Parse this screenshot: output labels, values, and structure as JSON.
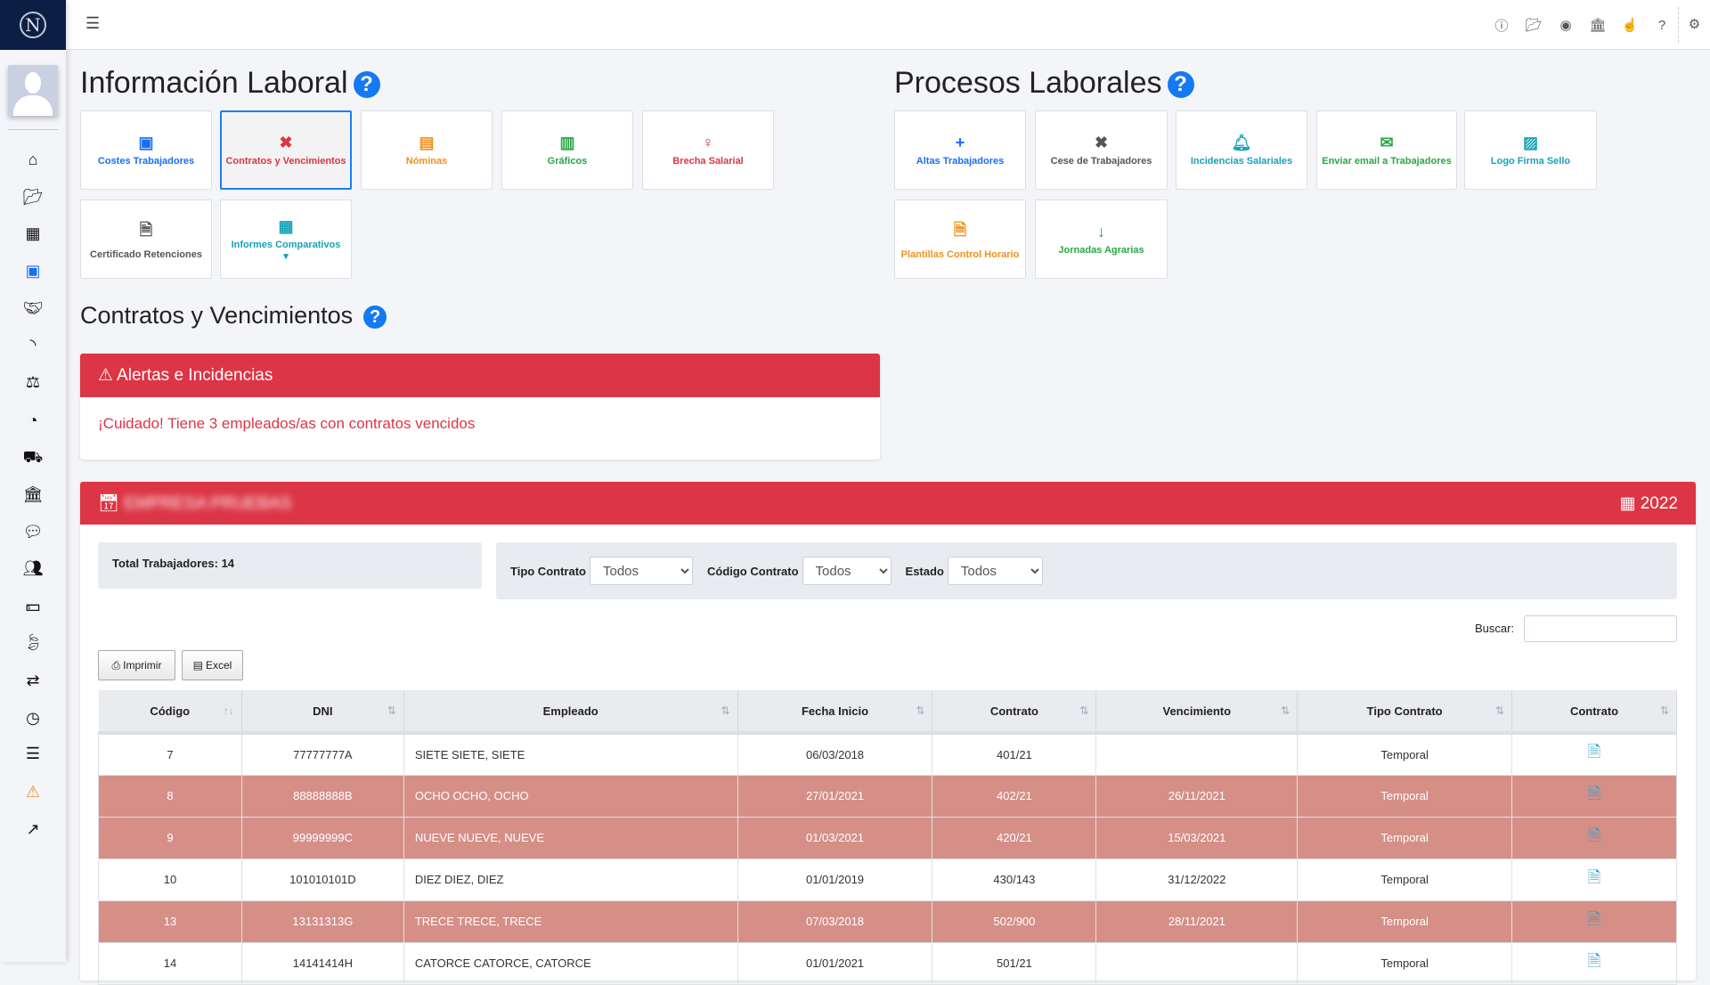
{
  "sidebar": {
    "logo": "N",
    "icons": [
      "home-icon",
      "folder-open-icon",
      "calculator-icon",
      "address-book-icon",
      "handshake-icon",
      "rss-icon",
      "balance-scale-icon",
      "dashboard-icon",
      "truck-icon",
      "bank-icon",
      "comments-icon",
      "users-icon",
      "money-icon",
      "leaf-icon",
      "retweet-icon",
      "clock-icon",
      "server-icon",
      "warning-icon",
      "external-link-icon"
    ]
  },
  "topbar": {
    "icons": [
      "info-icon",
      "folder-icon",
      "user-circle-icon",
      "bank-icon",
      "hand-pointer-icon",
      "question-icon",
      "gear-icon"
    ]
  },
  "info": {
    "title": "Información Laboral",
    "help": "?",
    "tiles": [
      {
        "label": "Costes Trabajadores",
        "color": "#1a6ef5"
      },
      {
        "label": "Contratos y Vencimientos",
        "color": "#dc3545"
      },
      {
        "label": "Nóminas",
        "color": "#f0901a"
      },
      {
        "label": "Gráficos",
        "color": "#28a745"
      },
      {
        "label": "Brecha Salarial",
        "color": "#dc3545"
      },
      {
        "label": "Certificado Retenciones",
        "color": "#555555"
      },
      {
        "label": "Informes Comparativos",
        "color": "#17a2b8"
      }
    ]
  },
  "procesos": {
    "title": "Procesos Laborales",
    "help": "?",
    "tiles": [
      {
        "label": "Altas Trabajadores",
        "color": "#1a6ef5"
      },
      {
        "label": "Cese de Trabajadores",
        "color": "#555555"
      },
      {
        "label": "Incidencias Salariales",
        "color": "#17a2b8"
      },
      {
        "label": "Enviar email a Trabajadores",
        "color": "#28a745"
      },
      {
        "label": "Logo Firma Sello",
        "color": "#17a2b8"
      },
      {
        "label": "Plantillas Control Horario",
        "color": "#f0901a"
      },
      {
        "label": "Jornadas Agrarias",
        "color": "#28a745"
      }
    ]
  },
  "section": {
    "title": "Contratos y Vencimientos",
    "help": "?"
  },
  "alerts": {
    "title": "Alertas e Incidencias",
    "message": "¡Cuidado! Tiene 3 empleados/as con contratos vencidos"
  },
  "company": {
    "name": "EMPRESA PRUEBAS",
    "year": "2022",
    "total": "Total Trabajadores: 14"
  },
  "filters": {
    "tipo_label": "Tipo Contrato",
    "tipo_value": "Todos",
    "codigo_label": "Código Contrato",
    "codigo_value": "Todos",
    "estado_label": "Estado",
    "estado_value": "Todos"
  },
  "search": {
    "label": "Buscar:",
    "value": ""
  },
  "buttons": {
    "print": "Imprimir",
    "excel": "Excel"
  },
  "table": {
    "headers": [
      "Código",
      "DNI",
      "Empleado",
      "Fecha Inicio",
      "Contrato",
      "Vencimiento",
      "Tipo Contrato",
      "Contrato"
    ],
    "rows": [
      {
        "codigo": "7",
        "dni": "77777777A",
        "empleado": "SIETE SIETE, SIETE",
        "inicio": "06/03/2018",
        "contrato": "401/21",
        "venc": "",
        "tipo": "Temporal",
        "expired": false
      },
      {
        "codigo": "8",
        "dni": "88888888B",
        "empleado": "OCHO OCHO, OCHO",
        "inicio": "27/01/2021",
        "contrato": "402/21",
        "venc": "26/11/2021",
        "tipo": "Temporal",
        "expired": true
      },
      {
        "codigo": "9",
        "dni": "99999999C",
        "empleado": "NUEVE NUEVE, NUEVE",
        "inicio": "01/03/2021",
        "contrato": "420/21",
        "venc": "15/03/2021",
        "tipo": "Temporal",
        "expired": true
      },
      {
        "codigo": "10",
        "dni": "101010101D",
        "empleado": "DIEZ DIEZ, DIEZ",
        "inicio": "01/01/2019",
        "contrato": "430/143",
        "venc": "31/12/2022",
        "tipo": "Temporal",
        "expired": false
      },
      {
        "codigo": "13",
        "dni": "13131313G",
        "empleado": "TRECE TRECE, TRECE",
        "inicio": "07/03/2018",
        "contrato": "502/900",
        "venc": "28/11/2021",
        "tipo": "Temporal",
        "expired": true
      },
      {
        "codigo": "14",
        "dni": "14141414H",
        "empleado": "CATORCE CATORCE, CATORCE",
        "inicio": "01/01/2021",
        "contrato": "501/21",
        "venc": "",
        "tipo": "Temporal",
        "expired": false
      }
    ]
  }
}
